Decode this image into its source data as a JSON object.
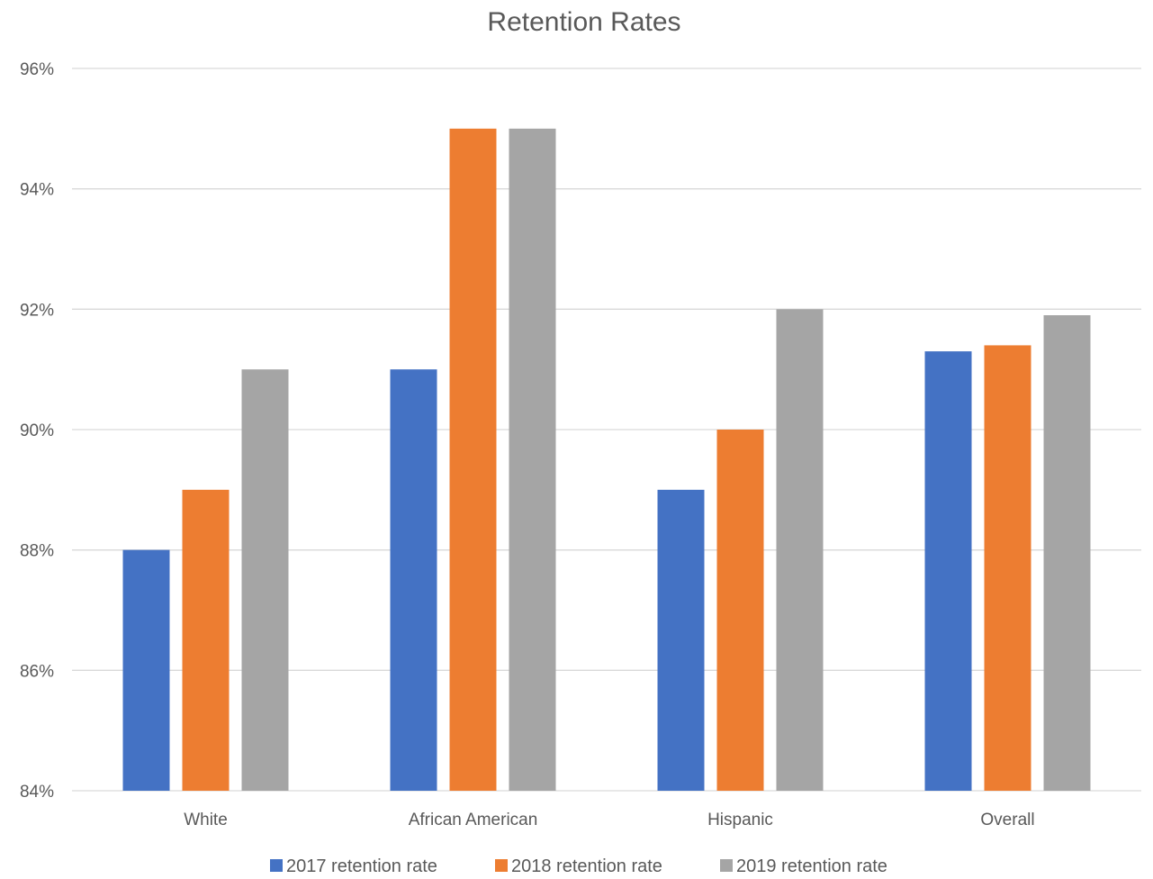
{
  "chart_data": {
    "type": "bar",
    "title": "Retention Rates",
    "xlabel": "",
    "ylabel": "",
    "categories": [
      "White",
      "African American",
      "Hispanic",
      "Overall"
    ],
    "series": [
      {
        "name": "2017 retention rate",
        "color": "#4472C4",
        "values": [
          88,
          91,
          89,
          91.3
        ]
      },
      {
        "name": "2018 retention rate",
        "color": "#ED7D31",
        "values": [
          89,
          95,
          90,
          91.4
        ]
      },
      {
        "name": "2019 retention rate",
        "color": "#A5A5A5",
        "values": [
          91,
          95,
          92,
          91.9
        ]
      }
    ],
    "ylim": [
      84,
      96
    ],
    "yticks": [
      84,
      86,
      88,
      90,
      92,
      94,
      96
    ],
    "ytick_labels": [
      "84%",
      "86%",
      "88%",
      "90%",
      "92%",
      "94%",
      "96%"
    ],
    "grid": true,
    "legend_position": "bottom"
  }
}
